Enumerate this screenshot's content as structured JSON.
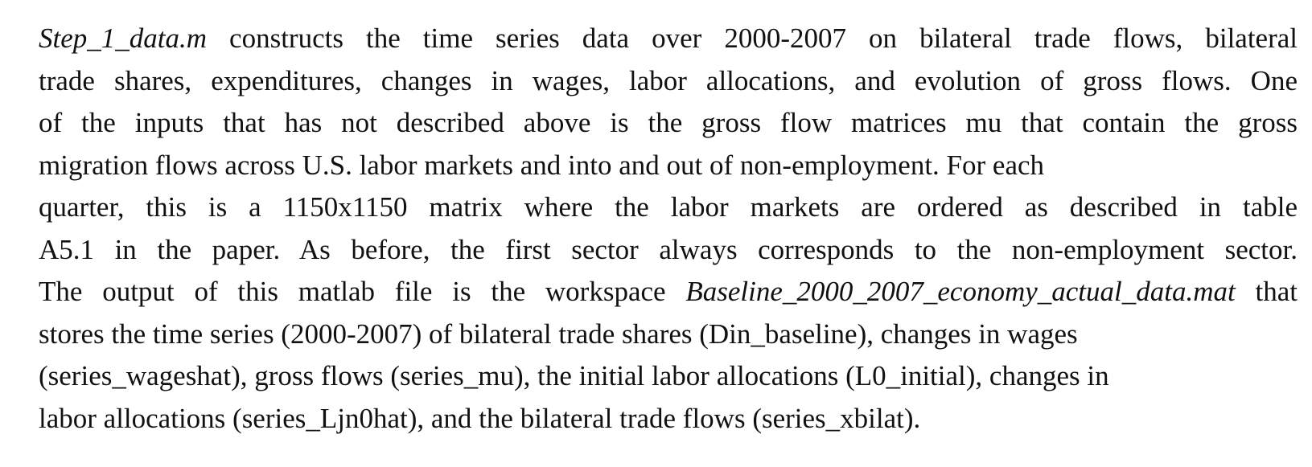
{
  "paragraph": {
    "line1": {
      "file_name": "Step_1_data.m",
      "text": " constructs the time series data over 2000-2007 on bilateral trade flows, bilateral"
    },
    "line2": "trade shares, expenditures, changes in wages, labor allocations, and evolution of gross flows. One",
    "line3": "of the inputs that has not described above is the gross flow matrices mu that contain the gross",
    "line4": "migration flows across U.S. labor markets and into and out of non-employment. For each",
    "line5": "quarter, this is a 1150x1150 matrix where the labor markets are ordered as described in table",
    "line6": "A5.1 in the paper. As before, the first sector always corresponds to the non-employment sector.",
    "line7": {
      "before": "The output of this matlab file is the workspace ",
      "workspace_name": "Baseline_2000_2007_economy_actual_data.mat",
      "after": "  that"
    },
    "line8": "stores the time series (2000-2007) of bilateral trade shares (Din_baseline), changes in wages",
    "line9": "(series_wageshat), gross flows (series_mu), the initial labor allocations (L0_initial), changes in",
    "line10": "labor allocations (series_Ljn0hat), and the bilateral trade flows (series_xbilat)."
  }
}
